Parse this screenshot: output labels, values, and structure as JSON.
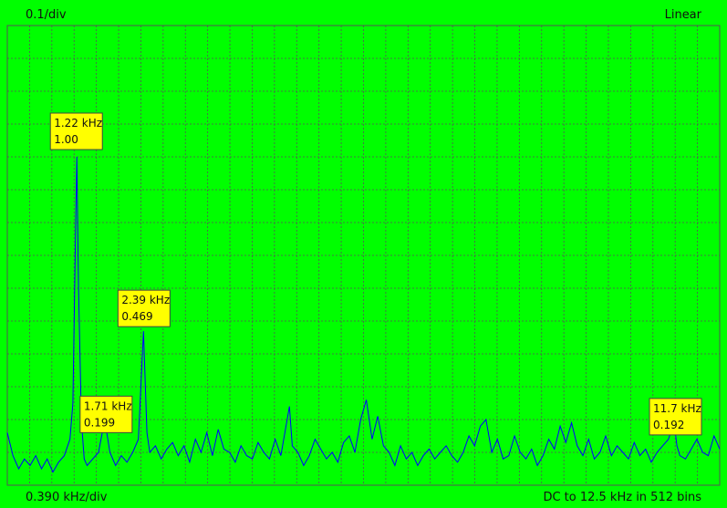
{
  "header": {
    "y_scale": "0.1/div",
    "mode": "Linear"
  },
  "footer": {
    "x_scale": "0.390 kHz/div",
    "range": "DC to 12.5 kHz in 512 bins"
  },
  "colors": {
    "background": "#00ff00",
    "trace": "#0000ff",
    "grid": "#555555",
    "marker_fill": "#ffff00"
  },
  "chart_data": {
    "type": "line",
    "title": "",
    "xlabel": "",
    "ylabel": "",
    "x_unit": "kHz",
    "xlim": [
      0,
      12.5
    ],
    "ylim": [
      0,
      1.4
    ],
    "grid": true,
    "markers": [
      {
        "freq": "1.22 kHz",
        "value": "1.00",
        "x": 1.22,
        "y": 1.0
      },
      {
        "freq": "2.39 kHz",
        "value": "0.469",
        "x": 2.39,
        "y": 0.469
      },
      {
        "freq": "1.71 kHz",
        "value": "0.199",
        "x": 1.71,
        "y": 0.199
      },
      {
        "freq": "11.7 kHz",
        "value": "0.192",
        "x": 11.7,
        "y": 0.192
      }
    ],
    "series": [
      {
        "points": [
          [
            0.0,
            0.16
          ],
          [
            0.1,
            0.09
          ],
          [
            0.2,
            0.05
          ],
          [
            0.3,
            0.08
          ],
          [
            0.4,
            0.06
          ],
          [
            0.5,
            0.09
          ],
          [
            0.6,
            0.05
          ],
          [
            0.7,
            0.08
          ],
          [
            0.8,
            0.04
          ],
          [
            0.9,
            0.07
          ],
          [
            1.0,
            0.09
          ],
          [
            1.1,
            0.14
          ],
          [
            1.15,
            0.25
          ],
          [
            1.2,
            0.8
          ],
          [
            1.22,
            1.0
          ],
          [
            1.25,
            0.6
          ],
          [
            1.3,
            0.2
          ],
          [
            1.35,
            0.08
          ],
          [
            1.4,
            0.06
          ],
          [
            1.5,
            0.08
          ],
          [
            1.6,
            0.1
          ],
          [
            1.71,
            0.199
          ],
          [
            1.8,
            0.1
          ],
          [
            1.9,
            0.06
          ],
          [
            2.0,
            0.09
          ],
          [
            2.1,
            0.07
          ],
          [
            2.2,
            0.1
          ],
          [
            2.3,
            0.14
          ],
          [
            2.39,
            0.469
          ],
          [
            2.45,
            0.16
          ],
          [
            2.5,
            0.1
          ],
          [
            2.6,
            0.12
          ],
          [
            2.7,
            0.08
          ],
          [
            2.8,
            0.11
          ],
          [
            2.9,
            0.13
          ],
          [
            3.0,
            0.09
          ],
          [
            3.1,
            0.12
          ],
          [
            3.2,
            0.07
          ],
          [
            3.3,
            0.14
          ],
          [
            3.4,
            0.1
          ],
          [
            3.5,
            0.16
          ],
          [
            3.6,
            0.09
          ],
          [
            3.7,
            0.17
          ],
          [
            3.8,
            0.11
          ],
          [
            3.9,
            0.1
          ],
          [
            4.0,
            0.07
          ],
          [
            4.1,
            0.12
          ],
          [
            4.2,
            0.09
          ],
          [
            4.3,
            0.08
          ],
          [
            4.4,
            0.13
          ],
          [
            4.5,
            0.1
          ],
          [
            4.6,
            0.08
          ],
          [
            4.7,
            0.14
          ],
          [
            4.8,
            0.09
          ],
          [
            4.9,
            0.19
          ],
          [
            4.95,
            0.24
          ],
          [
            5.0,
            0.12
          ],
          [
            5.1,
            0.1
          ],
          [
            5.2,
            0.06
          ],
          [
            5.3,
            0.09
          ],
          [
            5.4,
            0.14
          ],
          [
            5.5,
            0.11
          ],
          [
            5.6,
            0.08
          ],
          [
            5.7,
            0.1
          ],
          [
            5.8,
            0.07
          ],
          [
            5.9,
            0.13
          ],
          [
            6.0,
            0.15
          ],
          [
            6.1,
            0.1
          ],
          [
            6.2,
            0.2
          ],
          [
            6.3,
            0.26
          ],
          [
            6.4,
            0.14
          ],
          [
            6.5,
            0.21
          ],
          [
            6.6,
            0.12
          ],
          [
            6.7,
            0.1
          ],
          [
            6.8,
            0.06
          ],
          [
            6.9,
            0.12
          ],
          [
            7.0,
            0.08
          ],
          [
            7.1,
            0.1
          ],
          [
            7.2,
            0.06
          ],
          [
            7.3,
            0.09
          ],
          [
            7.4,
            0.11
          ],
          [
            7.5,
            0.08
          ],
          [
            7.6,
            0.1
          ],
          [
            7.7,
            0.12
          ],
          [
            7.8,
            0.09
          ],
          [
            7.9,
            0.07
          ],
          [
            8.0,
            0.1
          ],
          [
            8.1,
            0.15
          ],
          [
            8.2,
            0.12
          ],
          [
            8.3,
            0.18
          ],
          [
            8.4,
            0.2
          ],
          [
            8.5,
            0.1
          ],
          [
            8.6,
            0.14
          ],
          [
            8.7,
            0.08
          ],
          [
            8.8,
            0.09
          ],
          [
            8.9,
            0.15
          ],
          [
            9.0,
            0.1
          ],
          [
            9.1,
            0.08
          ],
          [
            9.2,
            0.11
          ],
          [
            9.3,
            0.06
          ],
          [
            9.4,
            0.09
          ],
          [
            9.5,
            0.14
          ],
          [
            9.6,
            0.11
          ],
          [
            9.7,
            0.18
          ],
          [
            9.8,
            0.13
          ],
          [
            9.9,
            0.19
          ],
          [
            10.0,
            0.12
          ],
          [
            10.1,
            0.09
          ],
          [
            10.2,
            0.14
          ],
          [
            10.3,
            0.08
          ],
          [
            10.4,
            0.1
          ],
          [
            10.5,
            0.15
          ],
          [
            10.6,
            0.09
          ],
          [
            10.7,
            0.12
          ],
          [
            10.8,
            0.1
          ],
          [
            10.9,
            0.08
          ],
          [
            11.0,
            0.13
          ],
          [
            11.1,
            0.09
          ],
          [
            11.2,
            0.11
          ],
          [
            11.3,
            0.07
          ],
          [
            11.4,
            0.1
          ],
          [
            11.5,
            0.12
          ],
          [
            11.6,
            0.14
          ],
          [
            11.7,
            0.192
          ],
          [
            11.75,
            0.12
          ],
          [
            11.8,
            0.09
          ],
          [
            11.9,
            0.08
          ],
          [
            12.0,
            0.11
          ],
          [
            12.1,
            0.14
          ],
          [
            12.2,
            0.1
          ],
          [
            12.3,
            0.09
          ],
          [
            12.4,
            0.15
          ],
          [
            12.5,
            0.11
          ]
        ]
      }
    ]
  }
}
